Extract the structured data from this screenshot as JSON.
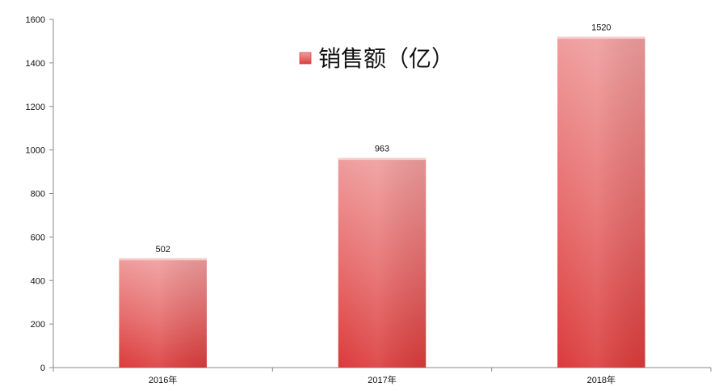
{
  "chart_data": {
    "type": "bar",
    "categories": [
      "2016年",
      "2017年",
      "2018年"
    ],
    "series": [
      {
        "name": "销售额（亿）",
        "values": [
          502,
          963,
          1520
        ],
        "color": "#e04848"
      }
    ],
    "title": "",
    "xlabel": "",
    "ylabel": "",
    "ylim": [
      0,
      1600
    ],
    "yticks": [
      0,
      200,
      400,
      600,
      800,
      1000,
      1200,
      1400,
      1600
    ],
    "data_labels": [
      "502",
      "963",
      "1520"
    ],
    "grid": false,
    "legend_position": "top-center"
  }
}
